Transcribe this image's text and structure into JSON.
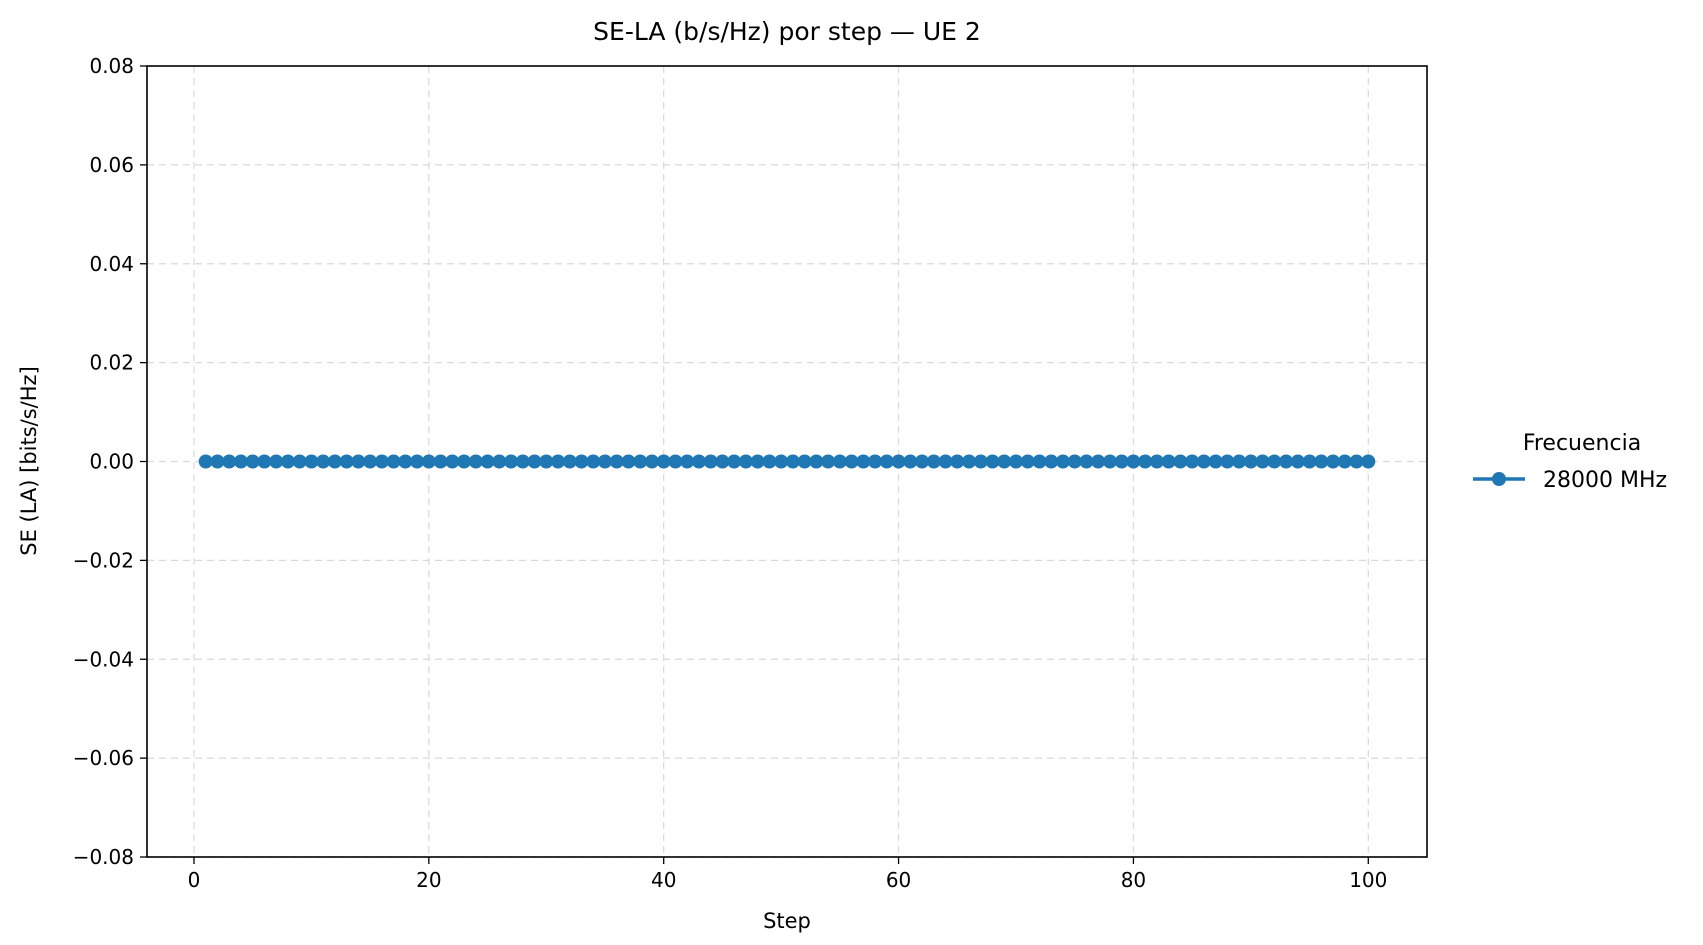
{
  "chart_data": {
    "type": "line",
    "title": "SE-LA (b/s/Hz) por step — UE 2",
    "xlabel": "Step",
    "ylabel": "SE (LA) [bits/s/Hz]",
    "xlim": [
      -4,
      105
    ],
    "ylim": [
      -0.08,
      0.08
    ],
    "xticks": [
      0,
      20,
      40,
      60,
      80,
      100
    ],
    "xtick_labels": [
      "0",
      "20",
      "40",
      "60",
      "80",
      "100"
    ],
    "yticks": [
      -0.08,
      -0.06,
      -0.04,
      -0.02,
      0.0,
      0.02,
      0.04,
      0.06,
      0.08
    ],
    "ytick_labels": [
      "−0.08",
      "−0.06",
      "−0.04",
      "−0.02",
      "0.00",
      "0.02",
      "0.04",
      "0.06",
      "0.08"
    ],
    "grid": true,
    "legend": {
      "title": "Frecuencia",
      "placement": "outside-right"
    },
    "series": [
      {
        "name": "28000 MHz",
        "color": "#1f77b4",
        "marker": "circle",
        "x_start": 1,
        "x_end": 100,
        "x_step": 1,
        "y": 0.0
      }
    ]
  }
}
